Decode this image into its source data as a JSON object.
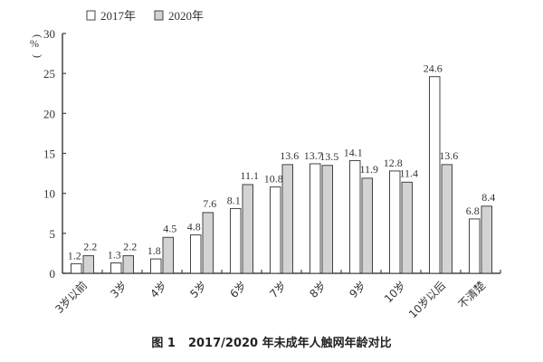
{
  "chart_data": {
    "type": "bar",
    "title": "图 1   2017/2020 年未成年人触网年龄对比",
    "figure_label": "图 1",
    "title_text": "2017/2020 年未成年人触网年龄对比",
    "xlabel": "",
    "ylabel": "（%）",
    "ylim": [
      0,
      30
    ],
    "yticks": [
      0,
      5,
      10,
      15,
      20,
      25,
      30
    ],
    "grid": false,
    "legend_position": "top-left",
    "categories": [
      "3岁以前",
      "3岁",
      "4岁",
      "5岁",
      "6岁",
      "7岁",
      "8岁",
      "9岁",
      "10岁",
      "10岁以后",
      "不清楚"
    ],
    "series": [
      {
        "name": "2017年",
        "color": "#ffffff",
        "values": [
          1.2,
          1.3,
          1.8,
          4.8,
          8.1,
          10.8,
          13.7,
          14.1,
          12.8,
          24.6,
          6.8
        ]
      },
      {
        "name": "2020年",
        "color": "#d3d3d3",
        "values": [
          2.2,
          2.2,
          4.5,
          7.6,
          11.1,
          13.6,
          13.5,
          11.9,
          11.4,
          13.6,
          8.4
        ]
      }
    ]
  },
  "caption": {
    "figure": "图 1",
    "text": "2017/2020 年未成年人触网年龄对比"
  }
}
